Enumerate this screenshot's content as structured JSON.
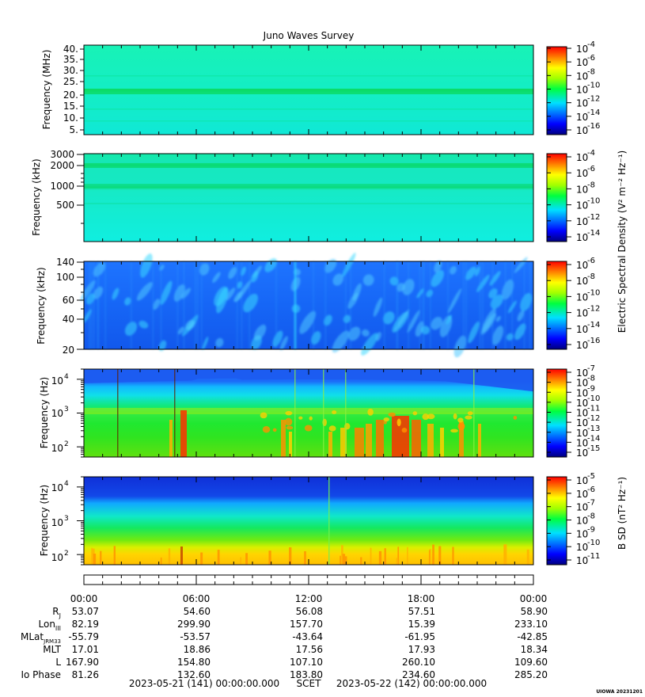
{
  "title": "Juno Waves Survey",
  "panels": [
    {
      "id": "hfr-mhz",
      "ylabel": "Frequency (MHz)",
      "yticks": [
        "40.",
        "35.",
        "30.",
        "25.",
        "20.",
        "15.",
        "10.",
        "5."
      ],
      "colorbar": {
        "exponents": [
          "-4",
          "-6",
          "-8",
          "-10",
          "-12",
          "-14",
          "-16"
        ]
      }
    },
    {
      "id": "hfr-khz",
      "ylabel": "Frequency (kHz)",
      "yticks": [
        "3000",
        "2000",
        "1000",
        "500"
      ],
      "colorbar": {
        "exponents": [
          "-4",
          "-6",
          "-8",
          "-10",
          "-12",
          "-14"
        ]
      }
    },
    {
      "id": "lfr-khz",
      "ylabel": "Frequency (kHz)",
      "yticks": [
        "140",
        "100",
        "60",
        "40",
        "20"
      ],
      "colorbar": {
        "exponents": [
          "-6",
          "-8",
          "-10",
          "-12",
          "-14",
          "-16"
        ]
      }
    },
    {
      "id": "lfrb-hz-e",
      "ylabel": "Frequency (Hz)",
      "yticks": [
        {
          "base": "10",
          "exp": "4"
        },
        {
          "base": "10",
          "exp": "3"
        },
        {
          "base": "10",
          "exp": "2"
        }
      ],
      "colorbar": {
        "exponents": [
          "-7",
          "-8",
          "-9",
          "-10",
          "-11",
          "-12",
          "-13",
          "-14",
          "-15"
        ]
      }
    },
    {
      "id": "lfrb-hz-b",
      "ylabel": "Frequency (Hz)",
      "yticks": [
        {
          "base": "10",
          "exp": "4"
        },
        {
          "base": "10",
          "exp": "3"
        },
        {
          "base": "10",
          "exp": "2"
        }
      ],
      "colorbar": {
        "exponents": [
          "-5",
          "-6",
          "-7",
          "-8",
          "-9",
          "-10",
          "-11"
        ]
      }
    }
  ],
  "colorbar_labels": {
    "electric": "Electric Spectral Density (V² m⁻² Hz⁻¹)",
    "magnetic": "B SD (nT² Hz⁻¹)"
  },
  "ephemeris": {
    "times": [
      "00:00",
      "06:00",
      "12:00",
      "18:00",
      "00:00"
    ],
    "rows": [
      {
        "label": "R",
        "sub": "J",
        "values": [
          "53.07",
          "54.60",
          "56.08",
          "57.51",
          "58.90"
        ]
      },
      {
        "label": "Lon",
        "sub": "III",
        "values": [
          "82.19",
          "299.90",
          "157.70",
          "15.39",
          "233.10"
        ]
      },
      {
        "label": "MLat",
        "sub": "JRM33",
        "values": [
          "-55.79",
          "-53.57",
          "-43.64",
          "-61.95",
          "-42.85"
        ]
      },
      {
        "label": "MLT",
        "sub": "",
        "values": [
          "17.01",
          "18.86",
          "17.56",
          "17.93",
          "18.34"
        ]
      },
      {
        "label": "L",
        "sub": "",
        "values": [
          "167.90",
          "154.80",
          "107.10",
          "260.10",
          "109.60"
        ]
      },
      {
        "label": "Io Phase",
        "sub": "",
        "values": [
          "81.26",
          "132.60",
          "183.80",
          "234.60",
          "285.20"
        ]
      }
    ]
  },
  "footer": {
    "start": "2023-05-21 (141) 00:00:00.000",
    "scet": "SCET",
    "end": "2023-05-22 (142) 00:00:00.000"
  },
  "credit": "UIOWA 20231201",
  "chart_data": {
    "type": "heatmap",
    "title": "Juno Waves Survey",
    "x_range": [
      "2023-05-21T00:00:00",
      "2023-05-22T00:00:00"
    ],
    "panels": [
      {
        "ylabel": "Frequency (MHz)",
        "ylim": [
          3.5,
          41
        ],
        "colorbar_range": [
          "1e-17",
          "1e-4"
        ]
      },
      {
        "ylabel": "Frequency (kHz)",
        "ylim": [
          150,
          3100
        ],
        "scale": "log",
        "colorbar_range": [
          "1e-15",
          "1e-4"
        ]
      },
      {
        "ylabel": "Frequency (kHz)",
        "ylim": [
          20,
          145
        ],
        "scale": "log",
        "colorbar_range": [
          "1e-16",
          "1e-6"
        ]
      },
      {
        "ylabel": "Frequency (Hz)",
        "ylim": [
          50,
          20000
        ],
        "scale": "log",
        "colorbar_range": [
          "1e-15",
          "1e-7"
        ]
      },
      {
        "ylabel": "Frequency (Hz)",
        "ylim": [
          50,
          20000
        ],
        "scale": "log",
        "colorbar_range": [
          "1e-11",
          "1e-5"
        ]
      }
    ]
  }
}
